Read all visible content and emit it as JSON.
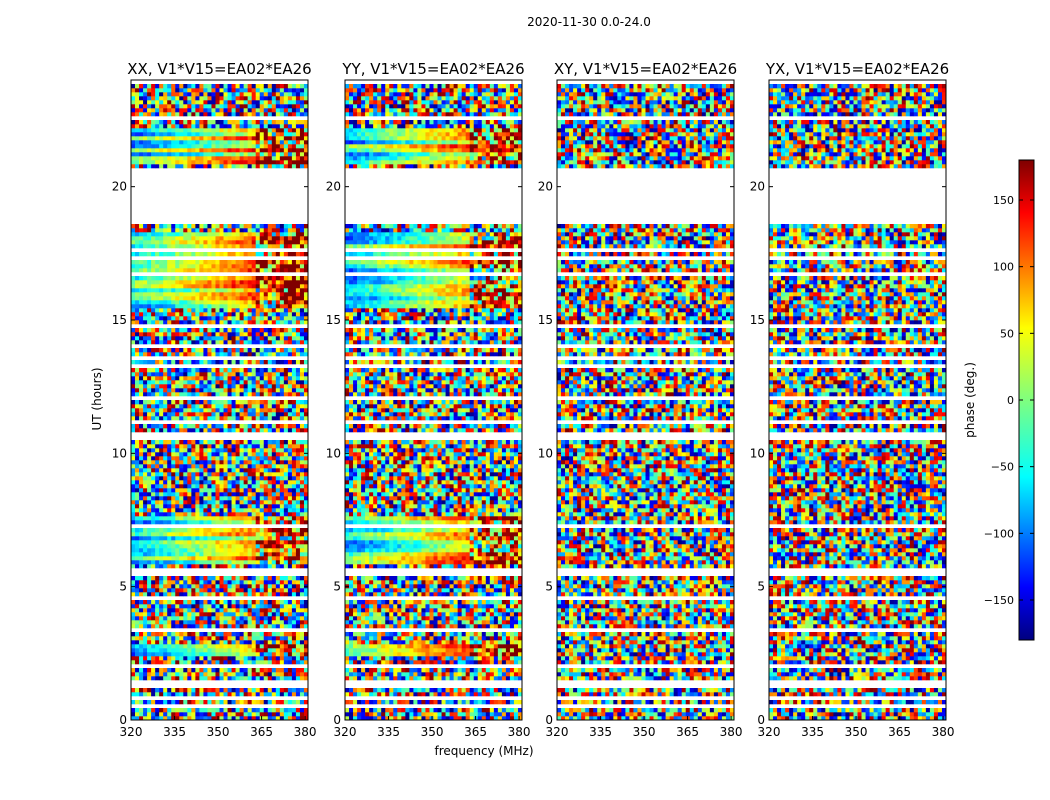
{
  "figure": {
    "title": "2020-11-30 0.0-24.0"
  },
  "chart_data": {
    "type": "heatmap",
    "suptitle": "2020-11-30 0.0-24.0",
    "xlabel": "frequency (MHz)",
    "ylabel": "UT (hours)",
    "xlim": [
      320,
      381
    ],
    "ylim": [
      0,
      24
    ],
    "xticks": [
      "320",
      "335",
      "350",
      "365",
      "380"
    ],
    "yticks": [
      "0",
      "5",
      "10",
      "15",
      "20"
    ],
    "panels": [
      {
        "title": "XX, V1*V15=EA02*EA26",
        "pol": "XX",
        "coherent_bands": [
          [
            5.8,
            7.6
          ],
          [
            15.3,
            18.3
          ],
          [
            20.8,
            22.2
          ],
          [
            2.3,
            2.7
          ]
        ]
      },
      {
        "title": "YY, V1*V15=EA02*EA26",
        "pol": "YY",
        "coherent_bands": [
          [
            5.8,
            7.6
          ],
          [
            15.3,
            18.3
          ],
          [
            20.8,
            22.2
          ],
          [
            2.3,
            2.7
          ]
        ]
      },
      {
        "title": "XY, V1*V15=EA02*EA26",
        "pol": "XY",
        "coherent_bands": []
      },
      {
        "title": "YX, V1*V15=EA02*EA26",
        "pol": "YX",
        "coherent_bands": []
      }
    ],
    "flagged_ranges_hours": [
      [
        18.5,
        20.7
      ],
      [
        5.45,
        5.65
      ],
      [
        1.9,
        2.05
      ],
      [
        3.45,
        3.55
      ],
      [
        7.95,
        8.05
      ],
      [
        15.15,
        15.25
      ]
    ],
    "colorbar": {
      "label": "phase (deg.)",
      "range": [
        -180,
        180
      ],
      "ticks": [
        "150",
        "100",
        "50",
        "0",
        "−50",
        "−100",
        "−150"
      ],
      "tick_values": [
        150,
        100,
        50,
        0,
        -50,
        -100,
        -150
      ],
      "colormap": "jet"
    }
  }
}
